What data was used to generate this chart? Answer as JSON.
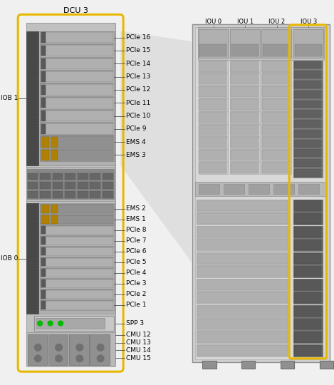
{
  "bg_color": "#f0f0f0",
  "dcu_outline_color": "#e8b800",
  "right_outline_color": "#e8b800",
  "dcu_label": "DCU 3",
  "right_labels": [
    "IOU 0",
    "IOU 1",
    "IOU 2",
    "IOU 3"
  ],
  "left_labels_top": [
    "PCIe 16",
    "PCIe 15",
    "PCIe 14",
    "PCIe 13",
    "PCIe 12",
    "PCIe 11",
    "PCIe 10",
    "PCIe 9",
    "EMS 4",
    "EMS 3"
  ],
  "left_labels_bottom": [
    "EMS 2",
    "EMS 1",
    "PCIe 8",
    "PCIe 7",
    "PCIe 6",
    "PCIe 5",
    "PCIe 4",
    "PCIe 3",
    "PCIe 2",
    "PCIe 1"
  ],
  "left_labels_spp": [
    "SPP 3"
  ],
  "left_labels_cmu": [
    "CMU 12",
    "CMU 13",
    "CMU 14",
    "CMU 15"
  ],
  "iob1_label": "IOB 1",
  "iob0_label": "IOB 0",
  "text_color": "#000000",
  "line_color": "#505050",
  "taper_fill": "#e0e0e0",
  "chassis_outer": "#c8c8c8",
  "chassis_inner": "#d8d8d8",
  "slot_light": "#c8c8c8",
  "slot_mid": "#a8a8a8",
  "slot_dark": "#787878",
  "slot_darker": "#585858",
  "mesh_color": "#484848",
  "ems_port": "#b89000",
  "green_led": "#00bb00",
  "yellow_gold": "#e8b800"
}
